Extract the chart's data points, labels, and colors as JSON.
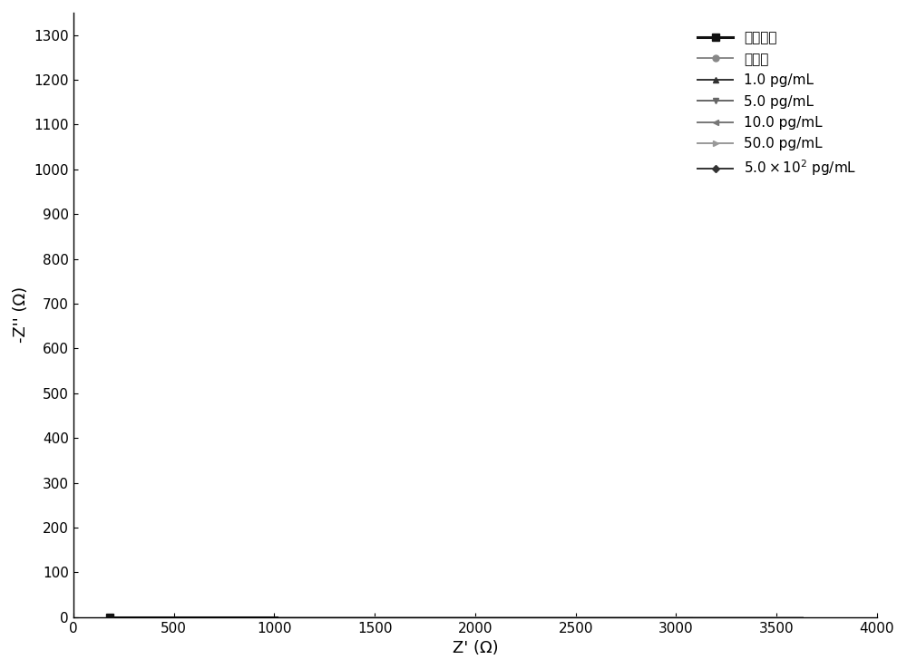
{
  "xlabel": "Z' (Ω)",
  "ylabel": "-Z'' (Ω)",
  "xlim": [
    0,
    4000
  ],
  "ylim": [
    0,
    1350
  ],
  "xticks": [
    0,
    500,
    1000,
    1500,
    2000,
    2500,
    3000,
    3500,
    4000
  ],
  "yticks": [
    0,
    100,
    200,
    300,
    400,
    500,
    600,
    700,
    800,
    900,
    1000,
    1100,
    1200,
    1300
  ],
  "background_color": "#ffffff",
  "legend_labels": [
    "裸金电极",
    "适配体",
    "1.0 pg/mL",
    "5.0 pg/mL",
    "10.0 pg/mL",
    "50.0 pg/mL",
    "5.0×10² pg/mL"
  ],
  "curves": [
    {
      "label": "裸金电极",
      "color": "#111111",
      "linewidth": 2.2,
      "marker": "s",
      "markersize": 6,
      "Rs": 180,
      "Rct": 830,
      "depression": 0.72,
      "n_pts": 55,
      "markevery": 5
    },
    {
      "label": "适配体",
      "color": "#888888",
      "linewidth": 1.4,
      "marker": "o",
      "markersize": 5,
      "Rs": 180,
      "Rct": 3450,
      "depression": 0.66,
      "n_pts": 90,
      "markevery": 7
    },
    {
      "label": "1.0 pg/mL",
      "color": "#333333",
      "linewidth": 1.4,
      "marker": "^",
      "markersize": 5,
      "Rs": 180,
      "Rct": 2900,
      "depression": 0.69,
      "n_pts": 80,
      "markevery": 6
    },
    {
      "label": "5.0 pg/mL",
      "color": "#666666",
      "linewidth": 1.4,
      "marker": "v",
      "markersize": 5,
      "Rs": 180,
      "Rct": 2640,
      "depression": 0.69,
      "n_pts": 75,
      "markevery": 6
    },
    {
      "label": "10.0 pg/mL",
      "color": "#777777",
      "linewidth": 1.4,
      "marker": "<",
      "markersize": 5,
      "Rs": 180,
      "Rct": 2400,
      "depression": 0.7,
      "n_pts": 72,
      "markevery": 6
    },
    {
      "label": "50.0 pg/mL",
      "color": "#999999",
      "linewidth": 1.4,
      "marker": ">",
      "markersize": 5,
      "Rs": 180,
      "Rct": 2100,
      "depression": 0.7,
      "n_pts": 68,
      "markevery": 5
    },
    {
      "label": "5.0×10² pg/mL",
      "color": "#333333",
      "linewidth": 1.4,
      "marker": "D",
      "markersize": 4,
      "Rs": 180,
      "Rct": 1580,
      "depression": 0.72,
      "n_pts": 60,
      "markevery": 5
    }
  ]
}
